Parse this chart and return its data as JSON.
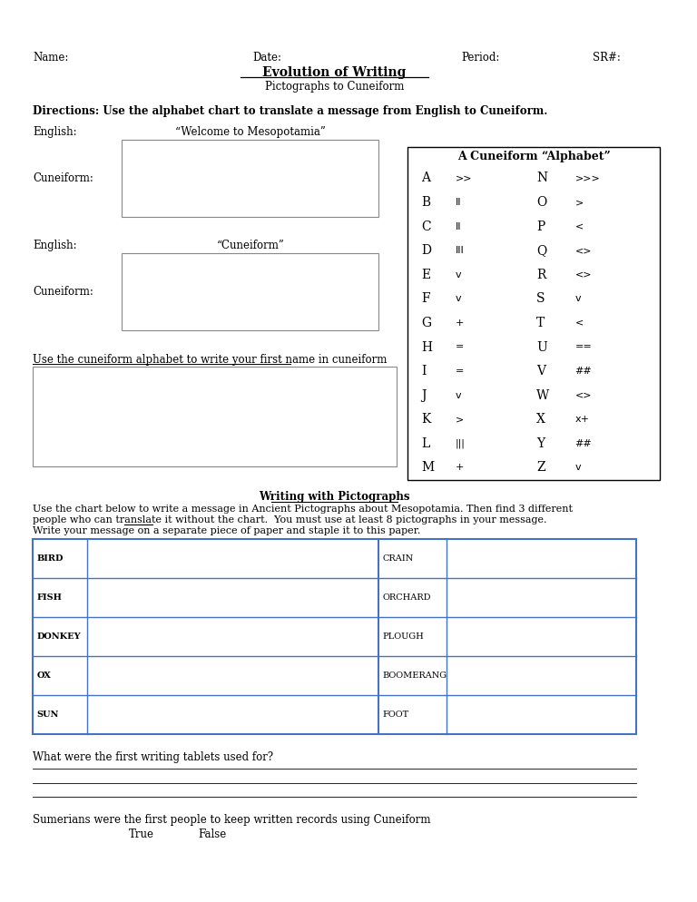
{
  "title_line1": "Evolution of Writing",
  "title_line2": "Pictographs to Cuneiform",
  "header_labels": [
    "Name:",
    "Date:",
    "Period:",
    "SR#:"
  ],
  "directions": "Directions: Use the alphabet chart to translate a message from English to Cuneiform.",
  "english1_label": "English:",
  "english1_text": "“Welcome to Mesopotamia”",
  "cuneiform1_label": "Cuneiform:",
  "english2_label": "English:",
  "english2_text": "“Cuneiform”",
  "cuneiform2_label": "Cuneiform:",
  "name_box_label": "Use the cuneiform alphabet to write your first name in cuneiform",
  "alphabet_title": "A Cuneiform “Alphabet”",
  "alphabet_left": [
    "A",
    "B",
    "C",
    "D",
    "E",
    "F",
    "G",
    "H",
    "I",
    "J",
    "K",
    "L",
    "M"
  ],
  "alphabet_right": [
    "N",
    "O",
    "P",
    "Q",
    "R",
    "S",
    "T",
    "U",
    "V",
    "W",
    "X",
    "Y",
    "Z"
  ],
  "pictograph_title": "Writing with Pictographs",
  "pictograph_desc1": "Use the chart below to write a message in Ancient Pictographs about Mesopotamia. Then find 3 different",
  "pictograph_desc2": "people who can translate it without the chart.  You must use at least 8 pictographs in your message.",
  "pictograph_desc3": "Write your message on a separate piece of paper and staple it to this paper.",
  "pictograph_rows": [
    "BIRD",
    "FISH",
    "DONKEY",
    "OX",
    "SUN"
  ],
  "pictograph_rows2": [
    "CRAIN",
    "ORCHARD",
    "PLOUGH",
    "BOOMERANG",
    "FOOT"
  ],
  "question": "What were the first writing tablets used for?",
  "true_false": "Sumerians were the first people to keep written records using Cuneiform",
  "true_label": "True",
  "false_label": "False",
  "bg_color": "#ffffff",
  "text_color": "#000000",
  "box_color": "#888888",
  "table_border": "#4472c4"
}
